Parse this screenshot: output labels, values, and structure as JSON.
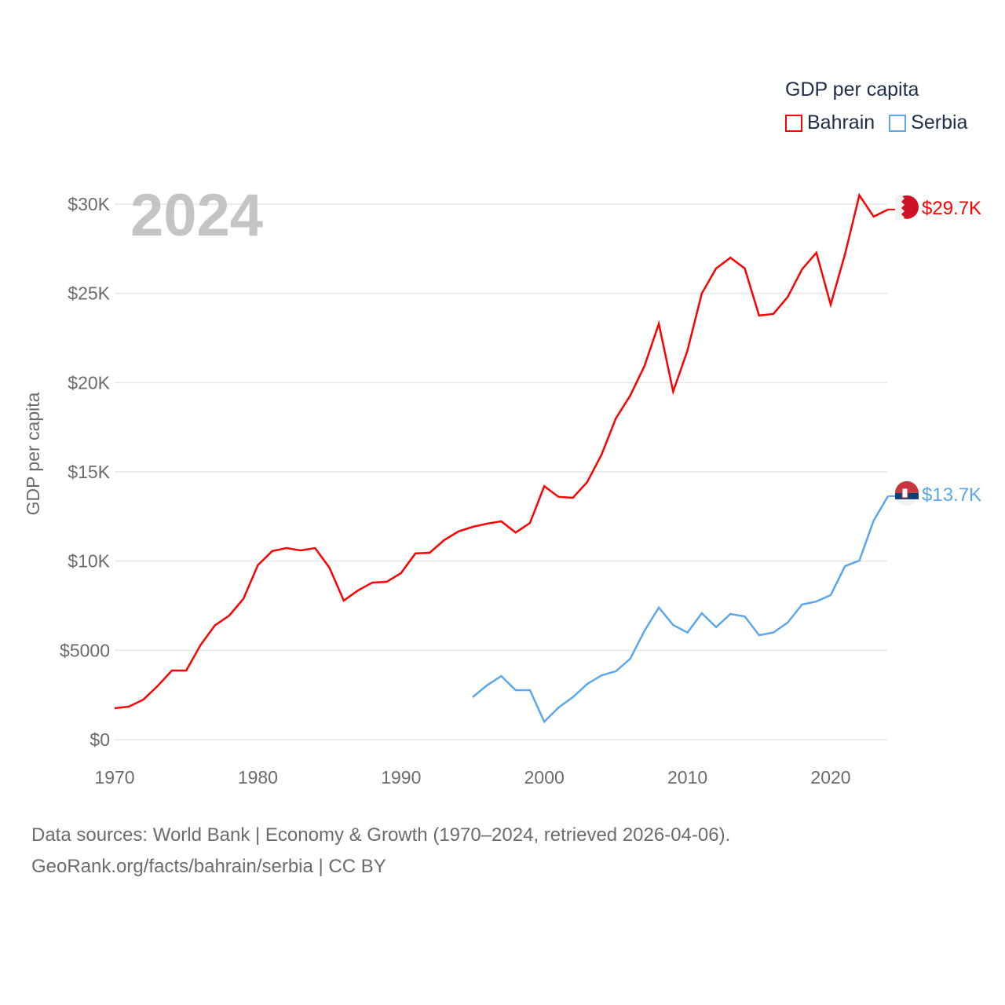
{
  "chart_data": {
    "type": "line",
    "title": "GDP per capita",
    "ylabel": "GDP per capita",
    "xlabel": "",
    "year_label": "2024",
    "xlim": [
      1970,
      2024
    ],
    "ylim": [
      0,
      30000
    ],
    "x_ticks": [
      "1970",
      "1980",
      "1990",
      "2000",
      "2010",
      "2020"
    ],
    "x_tick_values": [
      1970,
      1980,
      1990,
      2000,
      2010,
      2020
    ],
    "y_ticks": [
      "$0",
      "$5000",
      "$10K",
      "$15K",
      "$20K",
      "$25K",
      "$30K"
    ],
    "y_tick_values": [
      0,
      5000,
      10000,
      15000,
      20000,
      25000,
      30000
    ],
    "grid": true,
    "legend_position": "top-right",
    "series": [
      {
        "name": "Bahrain",
        "color": "#ff0000",
        "end_label": "$29.7K",
        "start_year": 1970,
        "values": [
          1760,
          1850,
          2240,
          3000,
          3870,
          3870,
          5300,
          6400,
          6950,
          7900,
          9770,
          10560,
          10730,
          10600,
          10730,
          9630,
          7790,
          8360,
          8800,
          8840,
          9330,
          10430,
          10470,
          11170,
          11660,
          11920,
          12100,
          12230,
          11600,
          12140,
          14200,
          13600,
          13550,
          14430,
          15970,
          18000,
          19270,
          20940,
          23300,
          19500,
          21800,
          25000,
          26400,
          27000,
          26400,
          23760,
          23850,
          24800,
          26350,
          27280,
          24370,
          27200,
          30500,
          29300,
          29700
        ]
      },
      {
        "name": "Serbia",
        "color": "#5ba7ea",
        "end_label": "$13.7K",
        "start_year": 1995,
        "values": [
          2380,
          3040,
          3560,
          2770,
          2770,
          1000,
          1800,
          2380,
          3120,
          3600,
          3830,
          4530,
          6100,
          7400,
          6420,
          6000,
          7080,
          6300,
          7040,
          6900,
          5850,
          6000,
          6560,
          7570,
          7740,
          8100,
          9720,
          10030,
          12270,
          13640
        ]
      }
    ]
  },
  "source": {
    "line1": "Data sources: World Bank | Economy & Growth (1970–2024, retrieved 2026-04-06).",
    "line2": "GeoRank.org/facts/bahrain/serbia | CC BY"
  }
}
